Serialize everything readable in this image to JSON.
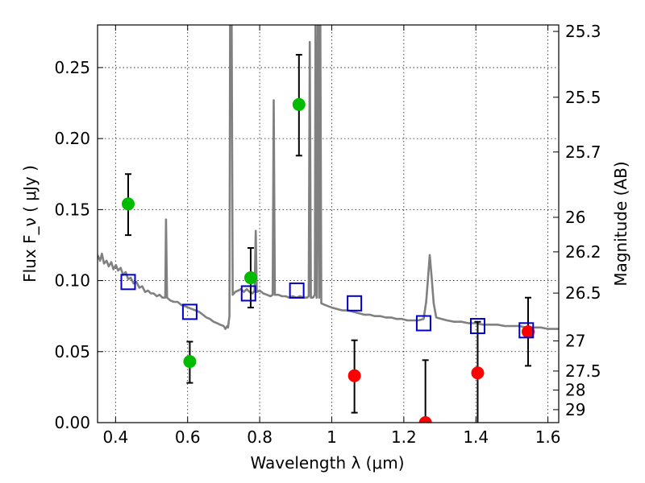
{
  "chart_data": {
    "type": "scatter",
    "xlabel": "Wavelength  λ (μm)",
    "ylabel": "Flux  F_ν  ( μJy )",
    "right_ylabel": "Magnitude (AB)",
    "xlim": [
      0.35,
      1.63
    ],
    "ylim": [
      0,
      0.28
    ],
    "x_ticks": [
      0.4,
      0.6,
      0.8,
      1.0,
      1.2,
      1.4,
      1.6
    ],
    "x_tick_labels": [
      "0.4",
      "0.6",
      "0.8",
      "1",
      "1.2",
      "1.4",
      "1.6"
    ],
    "y_ticks": [
      0.0,
      0.05,
      0.1,
      0.15,
      0.2,
      0.25
    ],
    "y_tick_labels": [
      "0.00",
      "0.05",
      "0.10",
      "0.15",
      "0.20",
      "0.25"
    ],
    "right_ticks": [
      {
        "mag": 25.3,
        "label": "25.3"
      },
      {
        "mag": 25.5,
        "label": "25.5"
      },
      {
        "mag": 25.7,
        "label": "25.7"
      },
      {
        "mag": 26.0,
        "label": "26"
      },
      {
        "mag": 26.2,
        "label": "26.2"
      },
      {
        "mag": 26.5,
        "label": "26.5"
      },
      {
        "mag": 27.0,
        "label": "27"
      },
      {
        "mag": 27.5,
        "label": "27.5"
      },
      {
        "mag": 28.0,
        "label": "28"
      },
      {
        "mag": 29.0,
        "label": "29"
      }
    ],
    "grid": true,
    "colors": {
      "model": "#808080",
      "green": "#00bb00",
      "red": "#ff0000",
      "blue": "#0000cc",
      "errorbar": "#000000"
    },
    "series": [
      {
        "marker": "circle",
        "color": "green",
        "points": [
          {
            "x": 0.435,
            "y": 0.154,
            "lo": 0.132,
            "hi": 0.175
          },
          {
            "x": 0.606,
            "y": 0.043,
            "lo": 0.028,
            "hi": 0.057
          },
          {
            "x": 0.775,
            "y": 0.102,
            "lo": 0.081,
            "hi": 0.123
          },
          {
            "x": 0.909,
            "y": 0.224,
            "lo": 0.188,
            "hi": 0.259
          }
        ]
      },
      {
        "marker": "circle",
        "color": "red",
        "points": [
          {
            "x": 1.063,
            "y": 0.033,
            "lo": 0.007,
            "hi": 0.058
          },
          {
            "x": 1.26,
            "y": 0.0,
            "lo": 0.0,
            "hi": 0.044
          },
          {
            "x": 1.405,
            "y": 0.035,
            "lo": 0.0,
            "hi": 0.071
          },
          {
            "x": 1.545,
            "y": 0.064,
            "lo": 0.04,
            "hi": 0.088
          }
        ]
      },
      {
        "marker": "square",
        "color": "blue",
        "points": [
          {
            "x": 0.435,
            "y": 0.099
          },
          {
            "x": 0.606,
            "y": 0.078
          },
          {
            "x": 0.769,
            "y": 0.091
          },
          {
            "x": 0.903,
            "y": 0.093
          },
          {
            "x": 1.063,
            "y": 0.084
          },
          {
            "x": 1.255,
            "y": 0.07
          },
          {
            "x": 1.405,
            "y": 0.068
          },
          {
            "x": 1.54,
            "y": 0.065
          }
        ]
      }
    ],
    "model_spectrum": [
      [
        0.35,
        0.118
      ],
      [
        0.357,
        0.114
      ],
      [
        0.362,
        0.119
      ],
      [
        0.368,
        0.112
      ],
      [
        0.375,
        0.114
      ],
      [
        0.381,
        0.11
      ],
      [
        0.388,
        0.113
      ],
      [
        0.394,
        0.108
      ],
      [
        0.401,
        0.111
      ],
      [
        0.407,
        0.107
      ],
      [
        0.414,
        0.109
      ],
      [
        0.421,
        0.104
      ],
      [
        0.428,
        0.106
      ],
      [
        0.435,
        0.101
      ],
      [
        0.442,
        0.102
      ],
      [
        0.45,
        0.098
      ],
      [
        0.458,
        0.099
      ],
      [
        0.466,
        0.095
      ],
      [
        0.474,
        0.096
      ],
      [
        0.482,
        0.092
      ],
      [
        0.49,
        0.093
      ],
      [
        0.498,
        0.091
      ],
      [
        0.506,
        0.091
      ],
      [
        0.514,
        0.089
      ],
      [
        0.522,
        0.09
      ],
      [
        0.53,
        0.088
      ],
      [
        0.538,
        0.088
      ],
      [
        0.54,
        0.143
      ],
      [
        0.543,
        0.088
      ],
      [
        0.552,
        0.086
      ],
      [
        0.562,
        0.085
      ],
      [
        0.572,
        0.085
      ],
      [
        0.582,
        0.083
      ],
      [
        0.592,
        0.082
      ],
      [
        0.602,
        0.081
      ],
      [
        0.612,
        0.08
      ],
      [
        0.622,
        0.079
      ],
      [
        0.632,
        0.078
      ],
      [
        0.642,
        0.076
      ],
      [
        0.652,
        0.074
      ],
      [
        0.662,
        0.073
      ],
      [
        0.672,
        0.071
      ],
      [
        0.682,
        0.07
      ],
      [
        0.69,
        0.069
      ],
      [
        0.7,
        0.068
      ],
      [
        0.705,
        0.066
      ],
      [
        0.71,
        0.068
      ],
      [
        0.712,
        0.067
      ],
      [
        0.716,
        0.075
      ],
      [
        0.718,
        0.3
      ],
      [
        0.722,
        0.3
      ],
      [
        0.725,
        0.09
      ],
      [
        0.732,
        0.092
      ],
      [
        0.74,
        0.093
      ],
      [
        0.748,
        0.094
      ],
      [
        0.756,
        0.092
      ],
      [
        0.764,
        0.094
      ],
      [
        0.772,
        0.092
      ],
      [
        0.78,
        0.091
      ],
      [
        0.786,
        0.093
      ],
      [
        0.789,
        0.135
      ],
      [
        0.792,
        0.092
      ],
      [
        0.8,
        0.093
      ],
      [
        0.81,
        0.091
      ],
      [
        0.82,
        0.09
      ],
      [
        0.83,
        0.089
      ],
      [
        0.836,
        0.09
      ],
      [
        0.839,
        0.227
      ],
      [
        0.842,
        0.09
      ],
      [
        0.852,
        0.09
      ],
      [
        0.862,
        0.089
      ],
      [
        0.872,
        0.089
      ],
      [
        0.882,
        0.088
      ],
      [
        0.892,
        0.089
      ],
      [
        0.902,
        0.088
      ],
      [
        0.912,
        0.089
      ],
      [
        0.922,
        0.088
      ],
      [
        0.932,
        0.088
      ],
      [
        0.936,
        0.089
      ],
      [
        0.939,
        0.268
      ],
      [
        0.942,
        0.088
      ],
      [
        0.948,
        0.088
      ],
      [
        0.953,
        0.09
      ],
      [
        0.955,
        0.3
      ],
      [
        0.958,
        0.088
      ],
      [
        0.962,
        0.3
      ],
      [
        0.965,
        0.088
      ],
      [
        0.968,
        0.3
      ],
      [
        0.971,
        0.084
      ],
      [
        0.98,
        0.083
      ],
      [
        0.99,
        0.082
      ],
      [
        1.0,
        0.081
      ],
      [
        1.015,
        0.08
      ],
      [
        1.03,
        0.079
      ],
      [
        1.045,
        0.079
      ],
      [
        1.06,
        0.078
      ],
      [
        1.075,
        0.077
      ],
      [
        1.09,
        0.076
      ],
      [
        1.105,
        0.076
      ],
      [
        1.12,
        0.075
      ],
      [
        1.135,
        0.075
      ],
      [
        1.15,
        0.074
      ],
      [
        1.165,
        0.074
      ],
      [
        1.18,
        0.073
      ],
      [
        1.195,
        0.073
      ],
      [
        1.21,
        0.072
      ],
      [
        1.225,
        0.072
      ],
      [
        1.24,
        0.072
      ],
      [
        1.255,
        0.073
      ],
      [
        1.262,
        0.085
      ],
      [
        1.268,
        0.104
      ],
      [
        1.272,
        0.118
      ],
      [
        1.277,
        0.103
      ],
      [
        1.283,
        0.084
      ],
      [
        1.29,
        0.074
      ],
      [
        1.305,
        0.073
      ],
      [
        1.32,
        0.072
      ],
      [
        1.34,
        0.071
      ],
      [
        1.36,
        0.071
      ],
      [
        1.38,
        0.07
      ],
      [
        1.4,
        0.07
      ],
      [
        1.42,
        0.069
      ],
      [
        1.44,
        0.069
      ],
      [
        1.46,
        0.069
      ],
      [
        1.48,
        0.068
      ],
      [
        1.5,
        0.068
      ],
      [
        1.52,
        0.068
      ],
      [
        1.54,
        0.067
      ],
      [
        1.56,
        0.067
      ],
      [
        1.58,
        0.067
      ],
      [
        1.6,
        0.066
      ],
      [
        1.63,
        0.066
      ]
    ]
  }
}
